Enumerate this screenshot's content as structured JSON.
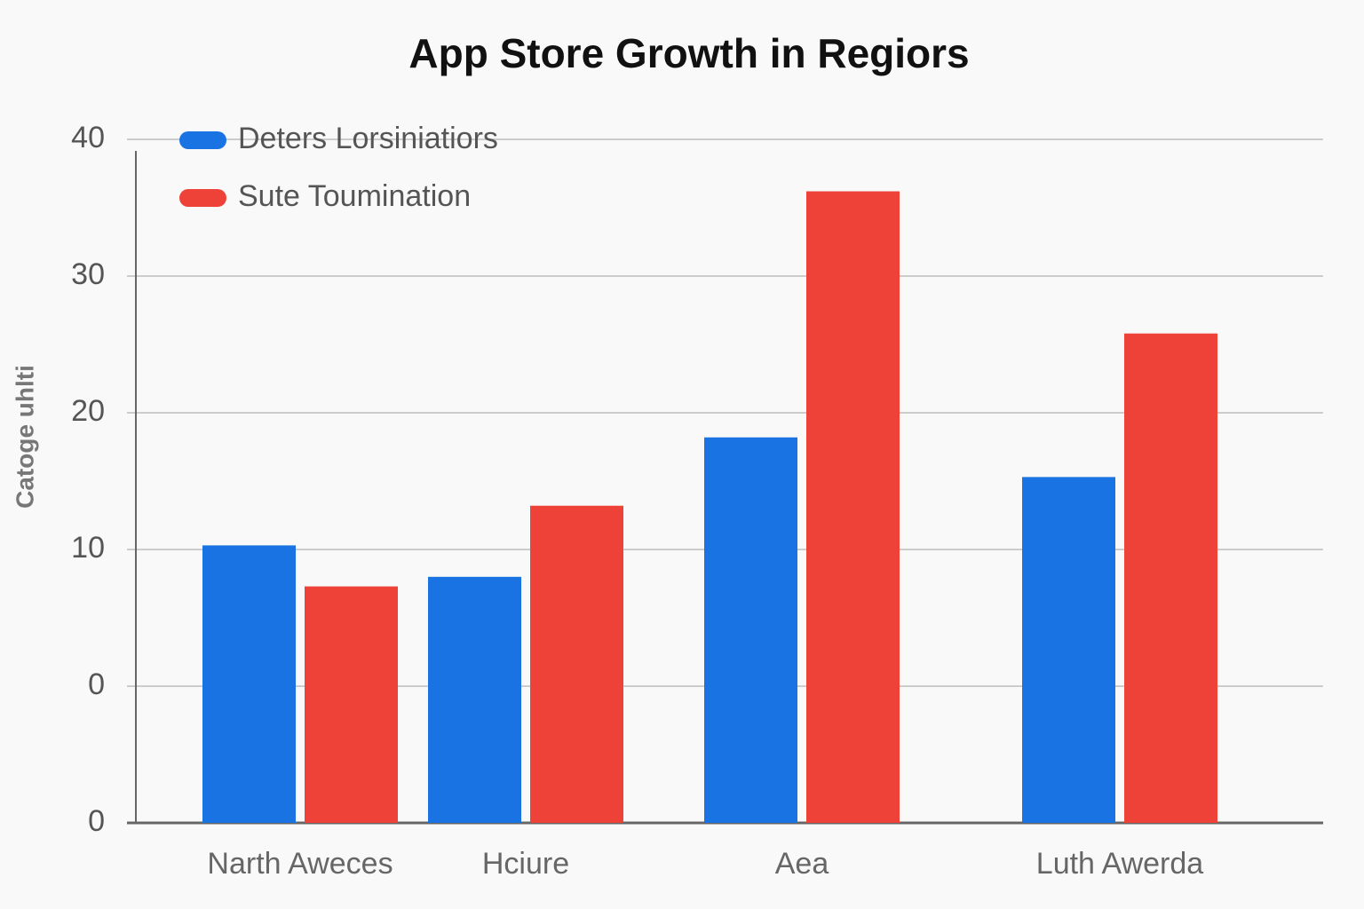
{
  "chart_data": {
    "type": "bar",
    "title": "App Store Growth in Regiors",
    "y_label": "Catoge uhlti",
    "categories": [
      "Narth Aweces",
      "Hciure",
      "Aea",
      "Luth Awerda"
    ],
    "series": [
      {
        "name": "Deters Lorsiniatiors",
        "color": "#1a73e3",
        "values": [
          10.3,
          8.0,
          18.2,
          15.3
        ]
      },
      {
        "name": "Sute Toumination",
        "color": "#ee4238",
        "values": [
          7.3,
          13.2,
          36.2,
          25.8
        ]
      }
    ],
    "ylim": [
      -10,
      40
    ],
    "yticks": [
      {
        "value": -10,
        "label": "0"
      },
      0,
      10,
      20,
      30,
      40
    ],
    "grid": true,
    "legend": "top-left"
  }
}
